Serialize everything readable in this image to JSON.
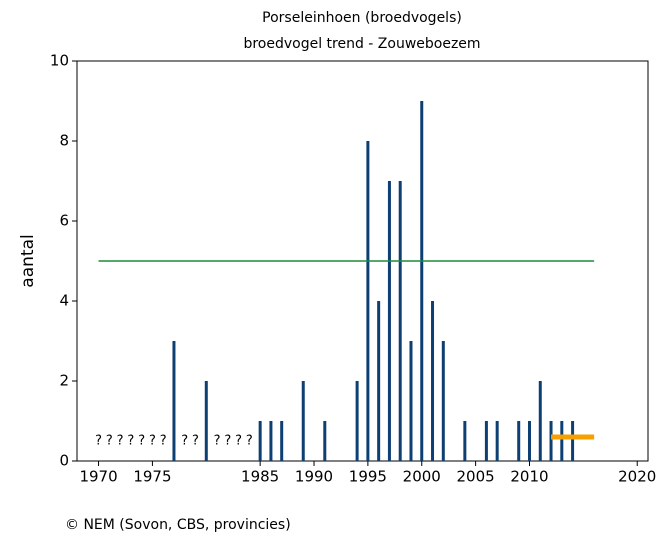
{
  "chart_data": {
    "type": "bar",
    "title": "Porseleinhoen (broedvogels)",
    "subtitle": "broedvogel trend - Zouweboezem",
    "ylabel": "aantal",
    "footer": "© NEM (Sovon, CBS, provincies)",
    "x": [
      1977,
      1980,
      1985,
      1986,
      1987,
      1989,
      1991,
      1994,
      1995,
      1996,
      1997,
      1998,
      1999,
      2000,
      2001,
      2002,
      2004,
      2006,
      2007,
      2009,
      2010,
      2011,
      2012,
      2013,
      2014
    ],
    "values": [
      3,
      2,
      1,
      1,
      1,
      2,
      1,
      2,
      8,
      4,
      7,
      7,
      3,
      9,
      4,
      3,
      1,
      1,
      1,
      1,
      1,
      2,
      1,
      1,
      1
    ],
    "color": "#0e3f73",
    "missing_label": "?",
    "missing_years": [
      1970,
      1971,
      1972,
      1973,
      1974,
      1975,
      1976,
      1978,
      1979,
      1981,
      1982,
      1983,
      1984
    ],
    "lines": [
      {
        "color": "#1f8a3a",
        "x": [
          1970,
          2016
        ],
        "values": [
          5,
          5
        ]
      },
      {
        "color": "#f5a000",
        "x": [
          2012,
          2016
        ],
        "values": [
          0.6,
          0.6
        ]
      }
    ],
    "xlim": [
      1968,
      2021
    ],
    "xticks": [
      1970,
      1975,
      1985,
      1990,
      1995,
      2000,
      2005,
      2010,
      2020
    ],
    "ylim": [
      0,
      10
    ],
    "yticks": [
      0,
      2,
      4,
      6,
      8,
      10
    ]
  }
}
